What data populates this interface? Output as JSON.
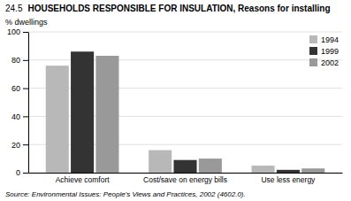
{
  "chart_data": {
    "type": "bar",
    "title": "HOUSEHOLDS RESPONSIBLE FOR INSULATION, Reasons for installing",
    "annotations": [
      "24.5",
      "Source: Environmental Issues: People's Views and Practices, 2002 (4602.0)."
    ],
    "ylabel": "% dwellings",
    "categories": [
      "Achieve comfort",
      "Cost/save on energy bills",
      "Use less energy"
    ],
    "series": [
      {
        "name": "1994",
        "color": "#b8b8b8",
        "values": [
          76,
          16,
          5
        ]
      },
      {
        "name": "1999",
        "color": "#333333",
        "values": [
          86,
          9,
          2
        ]
      },
      {
        "name": "2002",
        "color": "#999999",
        "values": [
          83,
          10,
          3
        ]
      }
    ],
    "ylim": [
      0,
      100
    ],
    "yticks": [
      0,
      20,
      40,
      60,
      80,
      100
    ],
    "grid": true,
    "legend": "upper right"
  }
}
